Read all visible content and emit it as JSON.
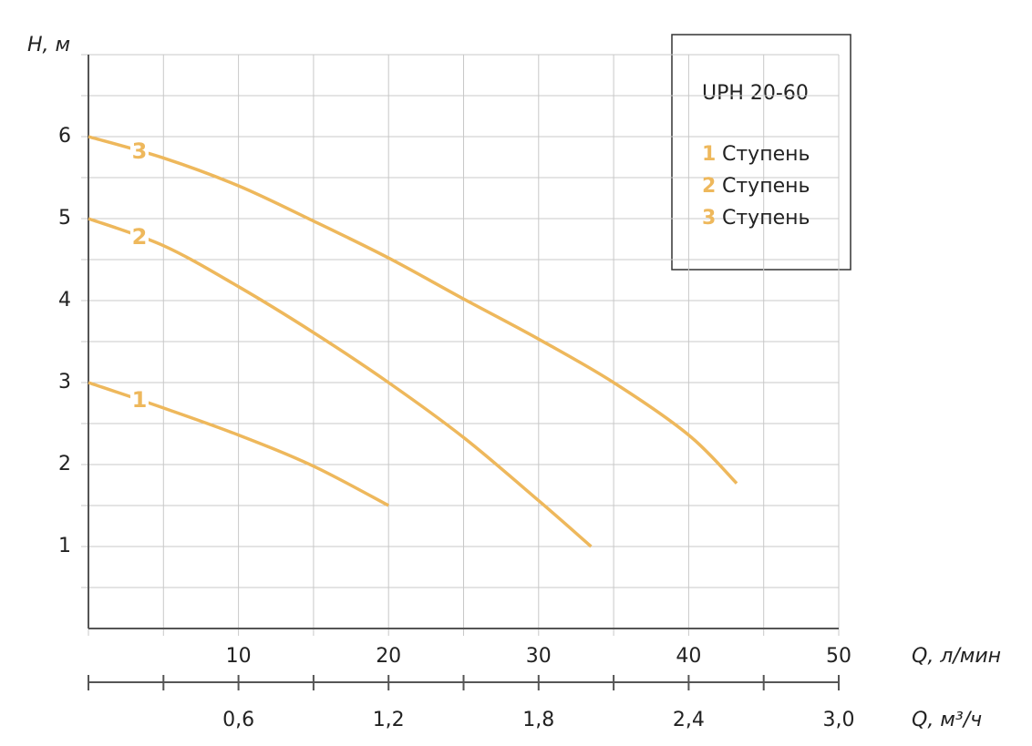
{
  "chart_data": {
    "type": "line",
    "title": "UPH 20-60",
    "ylabel": "H, м",
    "xlabel": "Q, л/мин",
    "x2label": "Q, м³/ч",
    "xlim": [
      0,
      50
    ],
    "ylim": [
      0,
      7
    ],
    "x2lim": [
      0,
      3.0
    ],
    "xticks": [
      10,
      20,
      30,
      40,
      50
    ],
    "xminor": [
      0,
      5,
      15,
      25,
      35,
      45
    ],
    "yticks": [
      1,
      2,
      3,
      4,
      5,
      6
    ],
    "yminor": [
      0.5,
      1.5,
      2.5,
      3.5,
      4.5,
      5.5,
      6.5,
      7
    ],
    "x2ticks": [
      {
        "value": 0.6,
        "label": "0,6"
      },
      {
        "value": 1.2,
        "label": "1,2"
      },
      {
        "value": 1.8,
        "label": "1,8"
      },
      {
        "value": 2.4,
        "label": "2,4"
      },
      {
        "value": 3.0,
        "label": "3,0"
      }
    ],
    "x2minor": [
      0,
      0.3,
      0.9,
      1.5,
      2.1,
      2.7
    ],
    "grid": true,
    "series": [
      {
        "label": "1",
        "name": "Ступень",
        "color": "#eeb85c",
        "x": [
          0,
          5,
          10,
          15,
          20
        ],
        "values": [
          3.0,
          2.69,
          2.36,
          1.98,
          1.5
        ]
      },
      {
        "label": "2",
        "name": "Ступень",
        "color": "#eeb85c",
        "x": [
          0,
          5,
          10,
          15,
          20,
          25,
          30,
          33.5
        ],
        "values": [
          5.0,
          4.67,
          4.17,
          3.61,
          3.0,
          2.33,
          1.56,
          1.0
        ]
      },
      {
        "label": "3",
        "name": "Ступень",
        "color": "#eeb85c",
        "x": [
          0,
          5,
          10,
          15,
          20,
          25,
          30,
          35,
          40,
          43.2
        ],
        "values": [
          6.0,
          5.74,
          5.4,
          4.97,
          4.52,
          4.02,
          3.53,
          3.0,
          2.36,
          1.77
        ]
      }
    ]
  }
}
